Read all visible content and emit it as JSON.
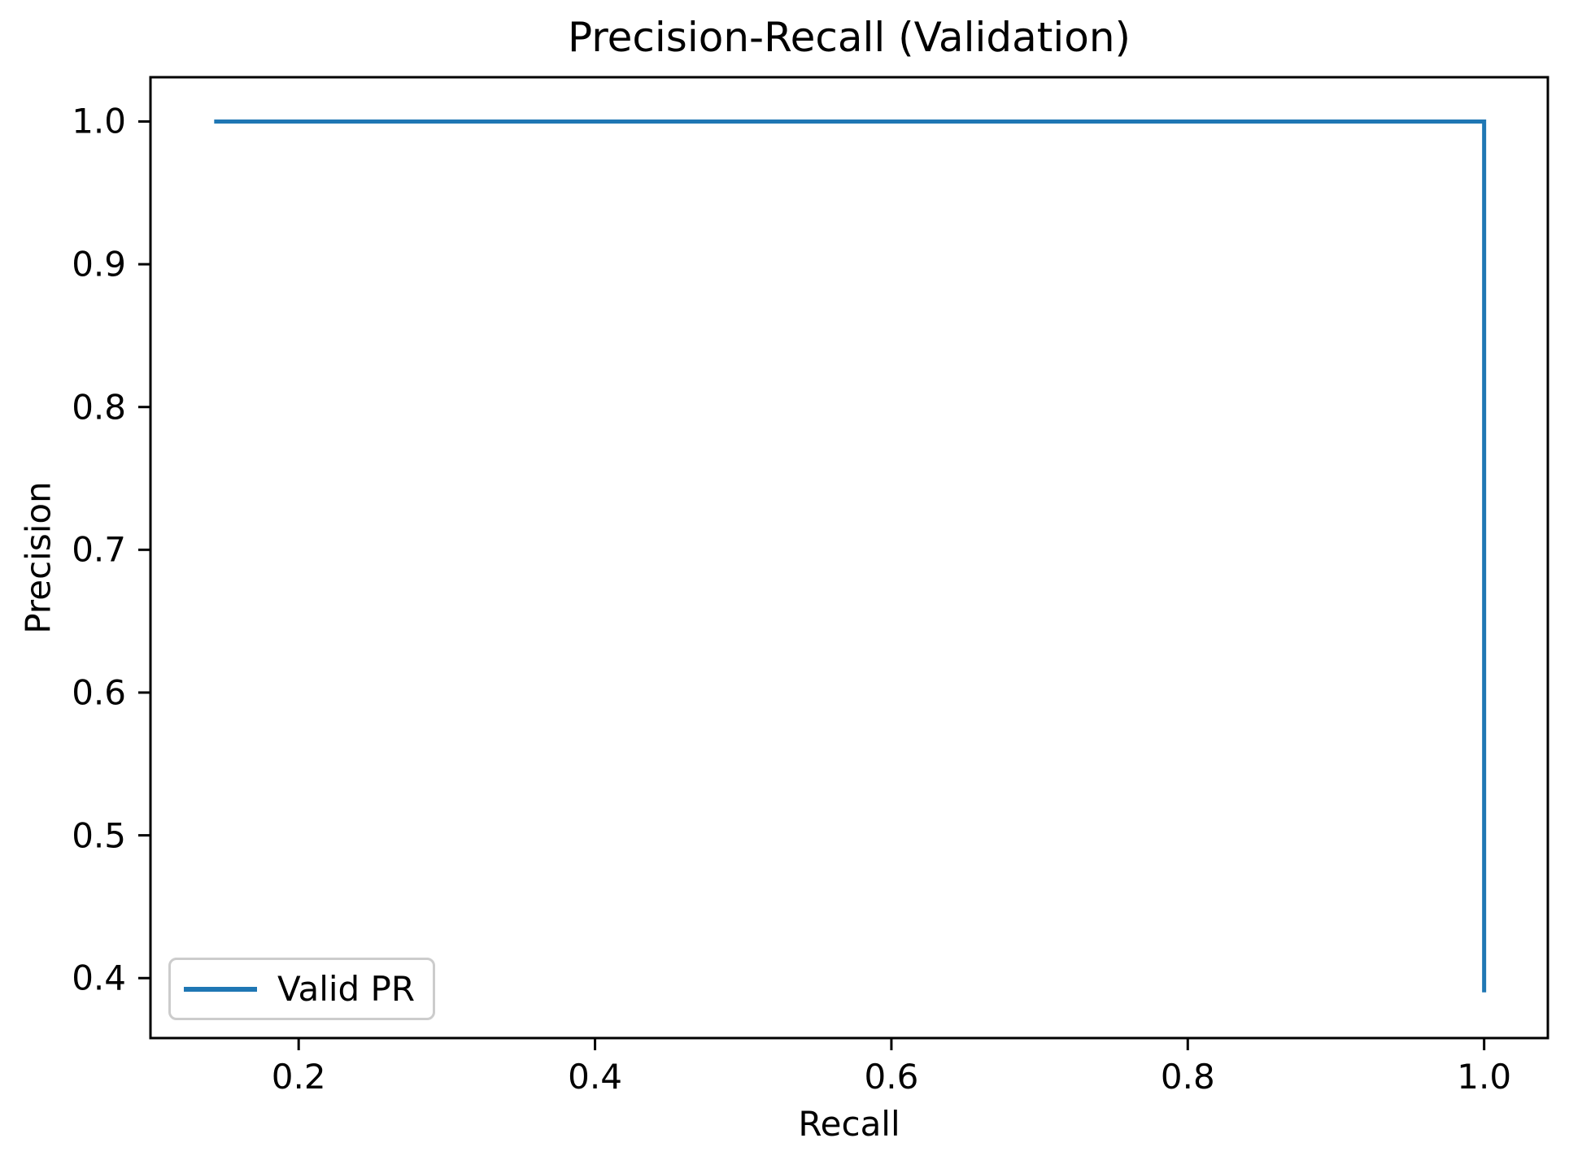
{
  "chart_data": {
    "type": "line",
    "title": "Precision-Recall (Validation)",
    "xlabel": "Recall",
    "ylabel": "Precision",
    "xlim": [
      0.1,
      1.043
    ],
    "ylim": [
      0.358,
      1.031
    ],
    "grid": false,
    "legend_position": "lower left",
    "xticks": [
      {
        "value": 0.2,
        "label": "0.2"
      },
      {
        "value": 0.4,
        "label": "0.4"
      },
      {
        "value": 0.6,
        "label": "0.6"
      },
      {
        "value": 0.8,
        "label": "0.8"
      },
      {
        "value": 1.0,
        "label": "1.0"
      }
    ],
    "yticks": [
      {
        "value": 0.4,
        "label": "0.4"
      },
      {
        "value": 0.5,
        "label": "0.5"
      },
      {
        "value": 0.6,
        "label": "0.6"
      },
      {
        "value": 0.7,
        "label": "0.7"
      },
      {
        "value": 0.8,
        "label": "0.8"
      },
      {
        "value": 0.9,
        "label": "0.9"
      },
      {
        "value": 1.0,
        "label": "1.0"
      }
    ],
    "series": [
      {
        "name": "Valid PR",
        "color": "#1f77b4",
        "points": [
          [
            0.143,
            1.0
          ],
          [
            1.0,
            1.0
          ],
          [
            1.0,
            0.39
          ]
        ]
      }
    ],
    "colors": {
      "frame": "#000000",
      "background": "#ffffff",
      "legend_border": "#cccccc",
      "text": "#000000"
    }
  }
}
